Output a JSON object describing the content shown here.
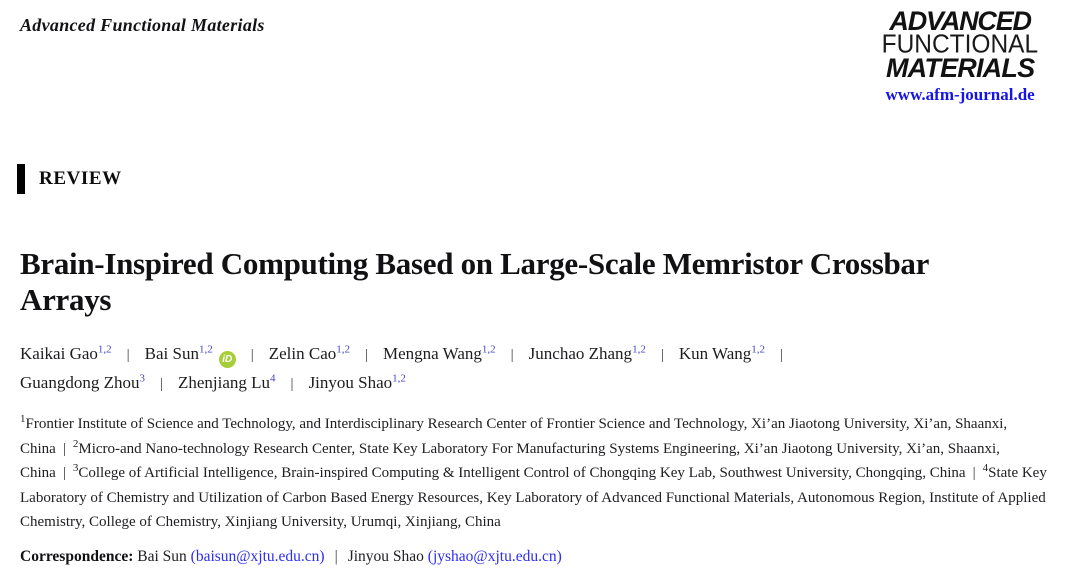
{
  "page": {
    "journal_name": "Advanced Functional Materials",
    "logo": {
      "line1": "ADVANCED",
      "line2": "FUNCTIONAL",
      "line3": "MATERIALS",
      "website": "www.afm-journal.de"
    },
    "article_type": "REVIEW",
    "title": "Brain-Inspired Computing Based on Large-Scale Memristor Crossbar Arrays"
  },
  "authors": {
    "separator": "|",
    "row1_trailing_separator": true,
    "rows": [
      [
        {
          "name": "Kaikai Gao",
          "sup": "1,2"
        },
        {
          "name": "Bai Sun",
          "sup": "1,2",
          "orcid": true
        },
        {
          "name": "Zelin Cao",
          "sup": "1,2"
        },
        {
          "name": "Mengna Wang",
          "sup": "1,2"
        },
        {
          "name": "Junchao Zhang",
          "sup": "1,2"
        },
        {
          "name": "Kun Wang",
          "sup": "1,2"
        }
      ],
      [
        {
          "name": "Guangdong Zhou",
          "sup": "3"
        },
        {
          "name": "Zhenjiang Lu",
          "sup": "4"
        },
        {
          "name": "Jinyou Shao",
          "sup": "1,2"
        }
      ]
    ]
  },
  "affiliations": {
    "separator": "|",
    "items": [
      {
        "sup": "1",
        "text": "Frontier Institute of Science and Technology, and Interdisciplinary Research Center of Frontier Science and Technology, Xi’an Jiaotong University, Xi’an, Shaanxi, China"
      },
      {
        "sup": "2",
        "text": "Micro-and Nano-technology Research Center, State Key Laboratory For Manufacturing Systems Engineering, Xi’an Jiaotong University, Xi’an, Shaanxi, China"
      },
      {
        "sup": "3",
        "text": "College of Artificial Intelligence, Brain-inspired Computing & Intelligent Control of Chongqing Key Lab, Southwest University, Chongqing, China"
      },
      {
        "sup": "4",
        "text": "State Key Laboratory of Chemistry and Utilization of Carbon Based Energy Resources, Key Laboratory of Advanced Functional Materials, Autonomous Region, Institute of Applied Chemistry, College of Chemistry, Xinjiang University, Urumqi, Xinjiang, China"
      }
    ]
  },
  "correspondence": {
    "label": "Correspondence:",
    "separator": "|",
    "contacts": [
      {
        "name": "Bai Sun",
        "email": "baisun@xjtu.edu.cn"
      },
      {
        "name": "Jinyou Shao",
        "email": "jyshao@xjtu.edu.cn"
      }
    ]
  },
  "icons": {
    "orcid": "orcid-id-icon",
    "orcid_text": "iD"
  },
  "colors": {
    "superscript": "#4545cc",
    "link": "#2d2df0",
    "website_link": "#1515e8",
    "orcid_green": "#a6ce39",
    "accent_bar": "#000000",
    "text": "#1d1d20"
  }
}
